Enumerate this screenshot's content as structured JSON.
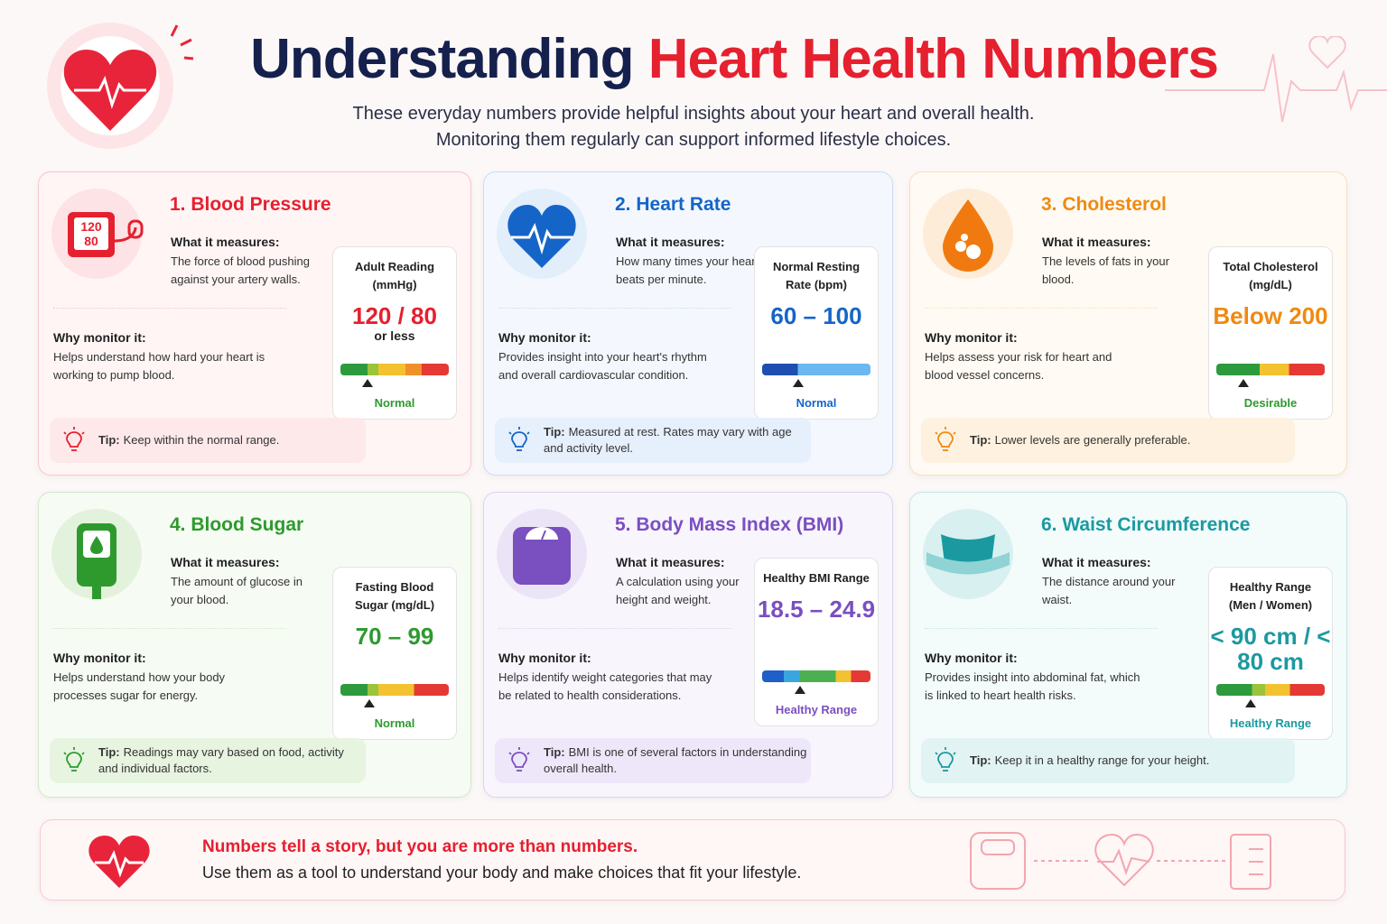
{
  "header": {
    "title_dark": "Understanding",
    "title_red": "Heart Health Numbers",
    "subtitle_lines": [
      "These everyday numbers provide helpful insights about your heart and overall health.",
      "Monitoring them regularly can support informed lifestyle choices."
    ]
  },
  "cards": [
    {
      "title": "1. Blood Pressure",
      "icon_text": [
        "120",
        "80"
      ],
      "what_label": "What it measures:",
      "what_text": "The force of blood pushing against your artery walls.",
      "why_label": "Why monitor it:",
      "why_text": "Helps understand how hard your heart is working to pump blood.",
      "reading_label": "Adult Reading (mmHg)",
      "reading_value": "120 / 80",
      "reading_sub": "or less",
      "status": "Normal",
      "tip_label": "Tip:",
      "tip_text": "Keep within the normal range."
    },
    {
      "title": "2. Heart Rate",
      "what_label": "What it measures:",
      "what_text": "How many times your heart beats per minute.",
      "why_label": "Why monitor it:",
      "why_text": "Provides insight into your heart's rhythm and overall cardiovascular condition.",
      "reading_label": "Normal Resting Rate (bpm)",
      "reading_value": "60 – 100",
      "status": "Normal",
      "tip_label": "Tip:",
      "tip_text": "Measured at rest. Rates may vary with age and activity level."
    },
    {
      "title": "3. Cholesterol",
      "what_label": "What it measures:",
      "what_text": "The levels of fats in your blood.",
      "why_label": "Why monitor it:",
      "why_text": "Helps assess your risk for heart and blood vessel concerns.",
      "reading_label": "Total Cholesterol (mg/dL)",
      "reading_value": "Below 200",
      "status": "Desirable",
      "tip_label": "Tip:",
      "tip_text": "Lower levels are generally preferable."
    },
    {
      "title": "4. Blood Sugar",
      "what_label": "What it measures:",
      "what_text": "The amount of glucose in your blood.",
      "why_label": "Why monitor it:",
      "why_text": "Helps understand how your body processes sugar for energy.",
      "reading_label": "Fasting Blood Sugar (mg/dL)",
      "reading_value": "70 – 99",
      "status": "Normal",
      "tip_label": "Tip:",
      "tip_text": "Readings may vary based on food, activity and individual factors."
    },
    {
      "title": "5. Body Mass Index (BMI)",
      "what_label": "What it measures:",
      "what_text": "A calculation using your height and weight.",
      "why_label": "Why monitor it:",
      "why_text": "Helps identify weight categories that may be related to health considerations.",
      "reading_label": "Healthy BMI Range",
      "reading_value": "18.5 – 24.9",
      "status": "Healthy Range",
      "tip_label": "Tip:",
      "tip_text": "BMI is one of several factors in understanding overall health."
    },
    {
      "title": "6. Waist Circumference",
      "what_label": "What it measures:",
      "what_text": "The distance around your waist.",
      "why_label": "Why monitor it:",
      "why_text": "Provides insight into abdominal fat, which is linked to heart health risks.",
      "reading_label": "Healthy Range (Men / Women)",
      "reading_value": "< 90 cm / < 80 cm",
      "status": "Healthy Range",
      "tip_label": "Tip:",
      "tip_text": "Keep it in a healthy range for your height."
    }
  ],
  "footer": {
    "headline": "Numbers tell a story, but you are more than numbers.",
    "text": "Use them as a tool to understand your body and make choices that fit your lifestyle."
  }
}
